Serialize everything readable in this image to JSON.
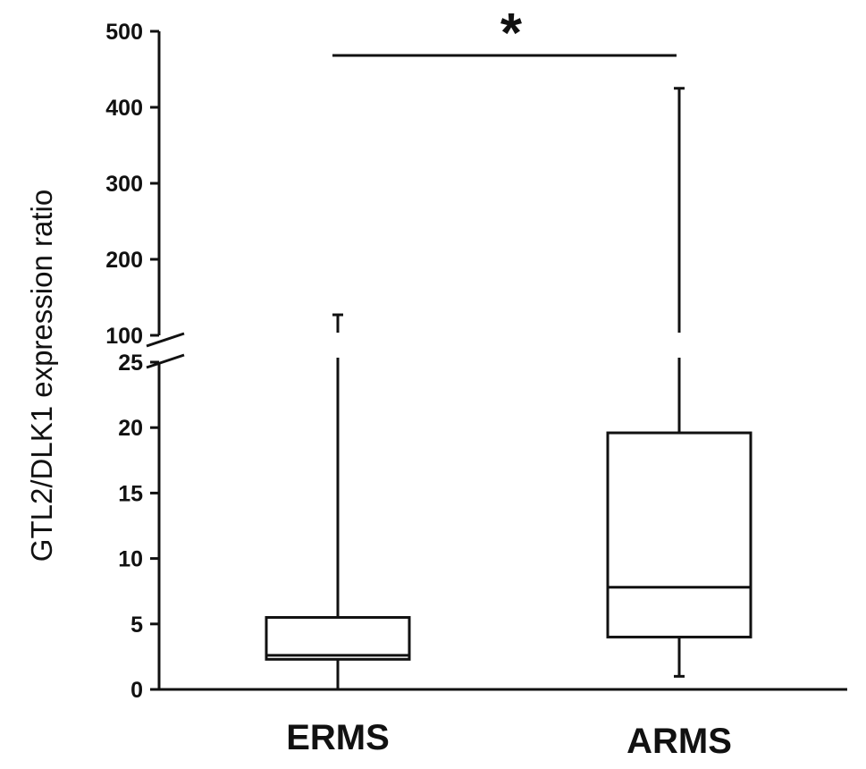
{
  "chart_data": {
    "type": "box",
    "ylabel": "GTL2/DLK1 expression ratio",
    "y_axis_break": {
      "lower_max": 25,
      "upper_min": 100
    },
    "lower_ticks": [
      "0",
      "5",
      "10",
      "15",
      "20",
      "25"
    ],
    "upper_ticks": [
      "100",
      "200",
      "300",
      "400",
      "500"
    ],
    "categories": [
      "ERMS",
      "ARMS"
    ],
    "boxes": [
      {
        "name": "ERMS",
        "min": 0,
        "q1": 2.3,
        "median": 2.6,
        "q3": 5.5,
        "max": 127
      },
      {
        "name": "ARMS",
        "min": 1.0,
        "q1": 4.0,
        "median": 7.8,
        "q3": 19.6,
        "max": 425
      }
    ],
    "significance": {
      "label": "*",
      "between": [
        "ERMS",
        "ARMS"
      ]
    }
  }
}
